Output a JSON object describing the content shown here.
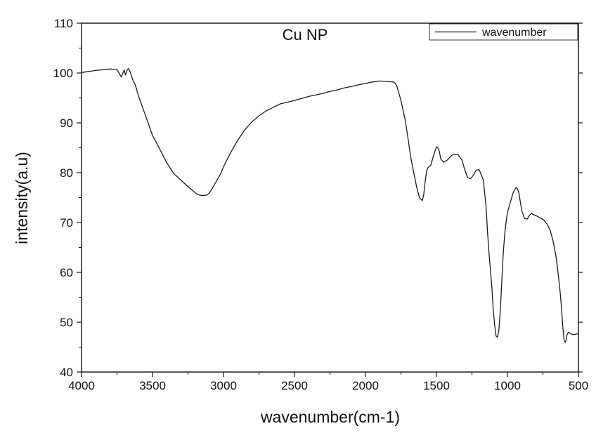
{
  "chart_data": {
    "type": "line",
    "title": "Cu NP",
    "xlabel": "wavenumber(cm-1)",
    "ylabel": "intensity(a.u)",
    "xlim": [
      4000,
      500
    ],
    "ylim": [
      40,
      110
    ],
    "x_ticks": [
      4000,
      3500,
      3000,
      2500,
      2000,
      1500,
      1000,
      500
    ],
    "y_ticks": [
      40,
      50,
      60,
      70,
      80,
      90,
      100,
      110
    ],
    "grid": false,
    "legend_position": "top-right",
    "series": [
      {
        "name": "wavenumber",
        "color": "#1a1a1a",
        "x": [
          4000,
          3900,
          3800,
          3750,
          3720,
          3700,
          3690,
          3680,
          3670,
          3660,
          3650,
          3640,
          3620,
          3600,
          3550,
          3500,
          3450,
          3400,
          3350,
          3300,
          3250,
          3200,
          3180,
          3150,
          3120,
          3100,
          3080,
          3050,
          3020,
          3000,
          2950,
          2900,
          2850,
          2800,
          2750,
          2700,
          2600,
          2500,
          2400,
          2300,
          2250,
          2200,
          2150,
          2100,
          2050,
          2000,
          1950,
          1900,
          1850,
          1800,
          1780,
          1750,
          1720,
          1700,
          1680,
          1660,
          1640,
          1620,
          1600,
          1590,
          1580,
          1570,
          1560,
          1540,
          1520,
          1500,
          1490,
          1480,
          1470,
          1450,
          1420,
          1400,
          1380,
          1350,
          1320,
          1300,
          1280,
          1260,
          1240,
          1220,
          1200,
          1190,
          1170,
          1150,
          1140,
          1130,
          1120,
          1110,
          1100,
          1090,
          1080,
          1070,
          1060,
          1050,
          1040,
          1030,
          1020,
          1010,
          1000,
          980,
          960,
          940,
          930,
          920,
          900,
          880,
          860,
          850,
          840,
          830,
          820,
          800,
          780,
          760,
          740,
          720,
          700,
          680,
          660,
          650,
          640,
          630,
          620,
          610,
          600,
          590,
          580,
          570,
          560,
          550,
          530,
          500
        ],
        "y": [
          100.1,
          100.5,
          100.8,
          100.7,
          99.2,
          100.6,
          99.6,
          100.5,
          100.9,
          100.4,
          99.6,
          98.7,
          97.5,
          95.5,
          91.5,
          87.5,
          84.8,
          82.0,
          79.8,
          78.5,
          77.2,
          76.0,
          75.6,
          75.4,
          75.5,
          75.9,
          76.8,
          78.3,
          79.8,
          81.2,
          84.0,
          86.5,
          88.6,
          90.2,
          91.4,
          92.4,
          93.8,
          94.5,
          95.3,
          95.9,
          96.3,
          96.6,
          97.0,
          97.3,
          97.6,
          97.9,
          98.2,
          98.4,
          98.3,
          98.2,
          97.5,
          94.5,
          90.5,
          86.8,
          83.0,
          80.0,
          77.2,
          75.0,
          74.4,
          75.5,
          78.0,
          80.3,
          81.0,
          81.5,
          83.5,
          85.2,
          85.0,
          84.3,
          82.8,
          82.1,
          82.6,
          83.3,
          83.7,
          83.7,
          82.5,
          80.5,
          79.0,
          78.8,
          79.5,
          80.5,
          80.6,
          80.0,
          78.5,
          73.0,
          68.0,
          64.0,
          60.5,
          57.0,
          52.5,
          49.5,
          47.2,
          47.0,
          48.5,
          52.5,
          58.0,
          63.5,
          67.5,
          70.0,
          72.0,
          74.0,
          76.0,
          77.0,
          76.8,
          76.0,
          72.5,
          70.8,
          70.7,
          71.2,
          71.6,
          71.8,
          71.6,
          71.4,
          71.1,
          70.8,
          70.4,
          69.6,
          68.5,
          66.5,
          63.5,
          61.5,
          59.0,
          56.5,
          53.0,
          49.0,
          46.2,
          46.0,
          47.5,
          48.0,
          47.8,
          47.6,
          47.5,
          47.7
        ]
      }
    ]
  }
}
